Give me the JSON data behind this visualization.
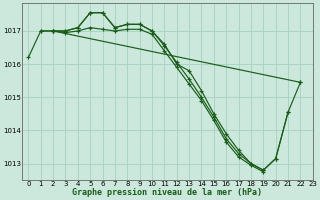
{
  "title": "Graphe pression niveau de la mer (hPa)",
  "background_color": "#cce8dc",
  "grid_color": "#aad4c4",
  "line_color": "#1a5c1a",
  "xlim": [
    -0.5,
    23
  ],
  "ylim": [
    1012.5,
    1017.85
  ],
  "yticks": [
    1013,
    1014,
    1015,
    1016,
    1017
  ],
  "xticks": [
    0,
    1,
    2,
    3,
    4,
    5,
    6,
    7,
    8,
    9,
    10,
    11,
    12,
    13,
    14,
    15,
    16,
    17,
    18,
    19,
    20,
    21,
    22,
    23
  ],
  "series": [
    {
      "x": [
        0,
        1,
        2,
        3,
        4,
        5,
        6,
        7,
        8,
        9,
        10,
        11,
        12,
        13,
        14,
        15,
        16,
        17,
        18,
        19,
        20,
        21
      ],
      "y": [
        1016.2,
        1017.0,
        1017.0,
        1017.0,
        1017.1,
        1017.55,
        1017.55,
        1017.1,
        1017.2,
        1017.2,
        1017.0,
        1016.6,
        1016.0,
        1015.8,
        1015.2,
        1014.5,
        1013.9,
        1013.4,
        1013.0,
        1012.8,
        1013.15,
        1014.55
      ]
    },
    {
      "x": [
        1,
        2,
        3,
        4,
        5,
        6,
        7,
        8,
        9,
        10,
        11,
        12,
        13,
        14,
        15,
        16,
        17,
        18,
        19,
        20,
        21,
        22
      ],
      "y": [
        1017.0,
        1017.0,
        1017.0,
        1017.1,
        1017.55,
        1017.55,
        1017.1,
        1017.2,
        1017.2,
        1017.0,
        1016.55,
        1016.05,
        1015.55,
        1015.0,
        1014.4,
        1013.75,
        1013.3,
        1013.0,
        1012.8,
        1013.15,
        1014.55,
        1015.45
      ]
    },
    {
      "x": [
        2,
        22
      ],
      "y": [
        1017.0,
        1015.45
      ]
    },
    {
      "x": [
        2,
        3,
        4,
        5,
        6,
        7,
        8,
        9,
        10,
        11,
        12,
        13,
        14,
        15,
        16,
        17,
        18,
        19
      ],
      "y": [
        1017.0,
        1016.95,
        1017.0,
        1017.1,
        1017.05,
        1017.0,
        1017.05,
        1017.05,
        1016.9,
        1016.4,
        1015.9,
        1015.4,
        1014.9,
        1014.3,
        1013.65,
        1013.2,
        1012.95,
        1012.75
      ]
    }
  ]
}
